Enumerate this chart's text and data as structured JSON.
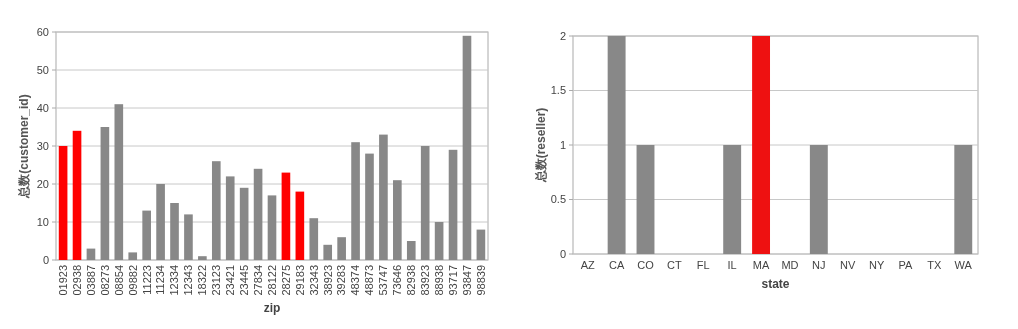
{
  "chart_data": [
    {
      "type": "bar",
      "xlabel": "zip",
      "ylabel": "总数(customer_id)",
      "categories": [
        "01923",
        "02938",
        "03887",
        "08273",
        "08854",
        "09882",
        "11223",
        "11234",
        "12334",
        "12343",
        "18322",
        "23123",
        "23421",
        "23445",
        "27834",
        "28122",
        "28275",
        "29183",
        "32343",
        "38923",
        "39283",
        "48374",
        "48873",
        "53747",
        "73646",
        "82938",
        "83923",
        "88938",
        "93717",
        "93847",
        "98839"
      ],
      "values": [
        30,
        34,
        3,
        35,
        41,
        2,
        13,
        20,
        15,
        12,
        1,
        26,
        22,
        19,
        24,
        17,
        23,
        18,
        11,
        4,
        6,
        31,
        28,
        33,
        21,
        5,
        30,
        10,
        29,
        59,
        8
      ],
      "colors": [
        "#ff0000",
        "#ff0000",
        "#888888",
        "#888888",
        "#888888",
        "#888888",
        "#888888",
        "#888888",
        "#888888",
        "#888888",
        "#888888",
        "#888888",
        "#888888",
        "#888888",
        "#888888",
        "#888888",
        "#ff0000",
        "#ff0000",
        "#888888",
        "#888888",
        "#888888",
        "#888888",
        "#888888",
        "#888888",
        "#888888",
        "#888888",
        "#888888",
        "#888888",
        "#888888",
        "#888888",
        "#888888"
      ],
      "ylim": [
        0,
        60
      ],
      "yticks": [
        0,
        10,
        20,
        30,
        40,
        50,
        60
      ],
      "grid": "y"
    },
    {
      "type": "bar",
      "xlabel": "state",
      "ylabel": "总数(reseller)",
      "categories": [
        "AZ",
        "CA",
        "CO",
        "CT",
        "FL",
        "IL",
        "MA",
        "MD",
        "NJ",
        "NV",
        "NY",
        "PA",
        "TX",
        "WA"
      ],
      "values": [
        0,
        2,
        1,
        0,
        0,
        1,
        2,
        0,
        1,
        0,
        0,
        0,
        0,
        1
      ],
      "colors": [
        "#888888",
        "#888888",
        "#888888",
        "#888888",
        "#888888",
        "#888888",
        "#ee1111",
        "#888888",
        "#888888",
        "#888888",
        "#888888",
        "#888888",
        "#888888",
        "#888888"
      ],
      "ylim": [
        0,
        2
      ],
      "yticks": [
        0,
        0.5,
        1,
        1.5,
        2
      ],
      "grid": "y"
    }
  ]
}
